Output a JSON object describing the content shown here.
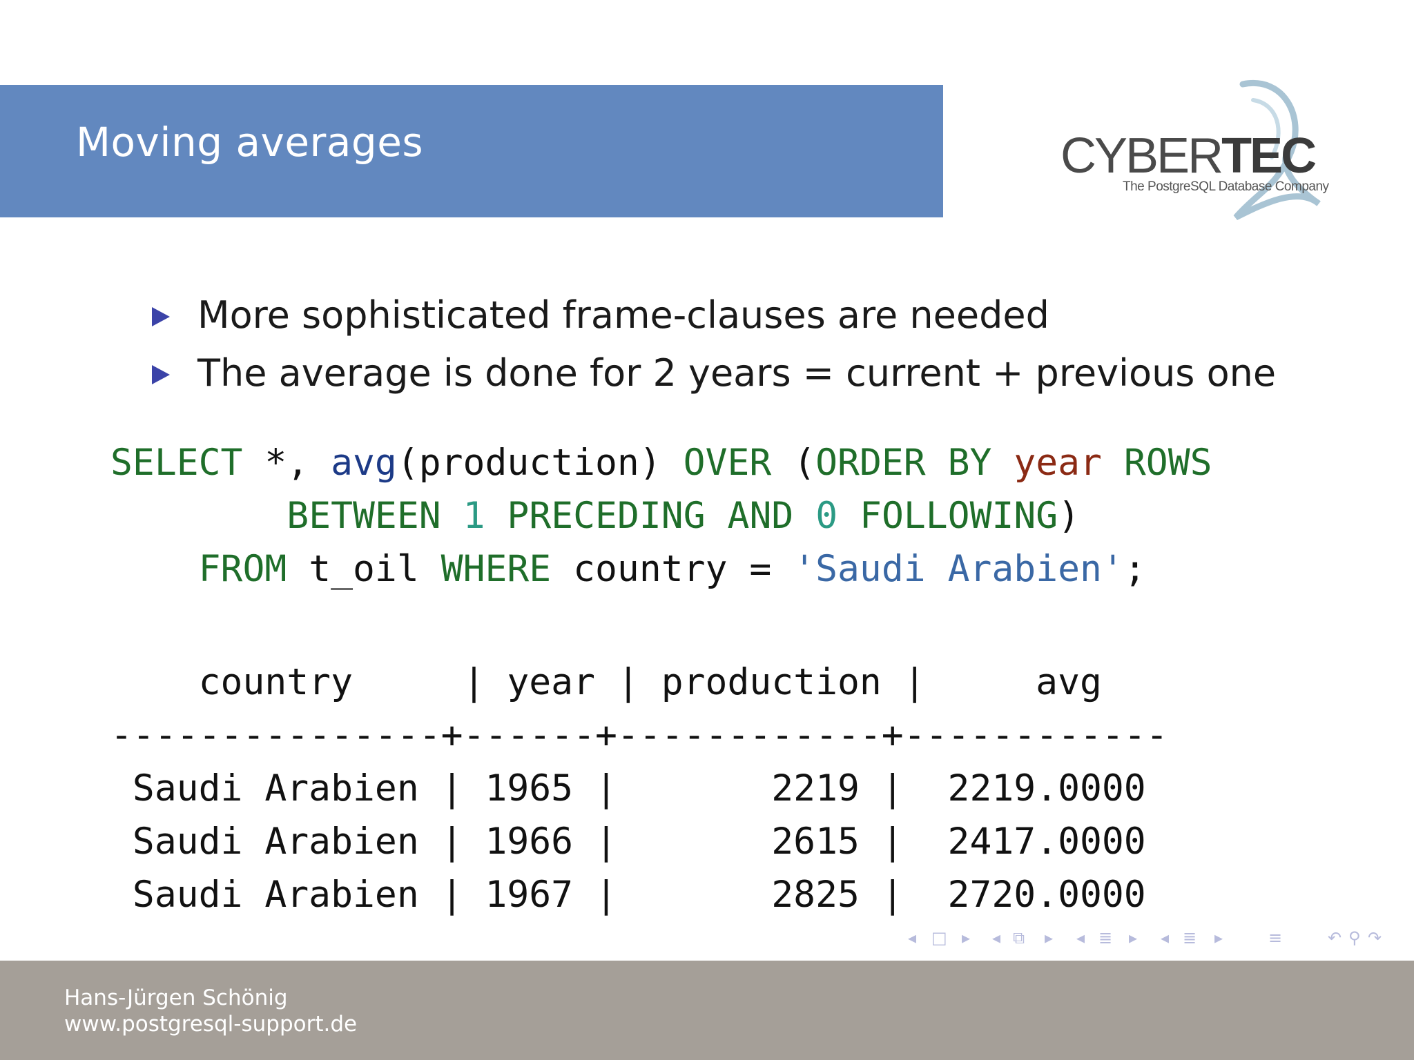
{
  "slide": {
    "title": "Moving averages",
    "logo": {
      "brand": "CYBERTEC",
      "tagline": "The PostgreSQL Database Company"
    }
  },
  "bullets": [
    "More sophisticated frame-clauses are needed",
    "The average is done for 2 years = current + previous one"
  ],
  "code": {
    "line1": {
      "select": "SELECT",
      "star": " *, ",
      "avg": "avg",
      "args": "(production) ",
      "over": "OVER",
      "paren": " (",
      "order_by": "ORDER BY",
      "sp1": " ",
      "year": "year",
      "sp2": " ",
      "rows": "ROWS"
    },
    "line2": {
      "indent": "        ",
      "between": "BETWEEN",
      "sp1": " ",
      "one": "1",
      "sp2": " ",
      "preceding": "PRECEDING",
      "sp3": " ",
      "and": "AND",
      "sp4": " ",
      "zero": "0",
      "sp5": " ",
      "following": "FOLLOWING",
      "close": ")"
    },
    "line3": {
      "indent": "    ",
      "from": "FROM",
      "table": " t_oil ",
      "where": "WHERE",
      "cond": " country = ",
      "value": "'Saudi Arabien'",
      "semi": ";"
    }
  },
  "result": {
    "header": "    country     | year | production |     avg",
    "separator": "---------------+------+------------+------------",
    "rows": [
      " Saudi Arabien | 1965 |       2219 |  2219.0000",
      " Saudi Arabien | 1966 |       2615 |  2417.0000",
      " Saudi Arabien | 1967 |       2825 |  2720.0000"
    ]
  },
  "navigation": {
    "icons": [
      "nav-left-icon",
      "frame-icon",
      "nav-right-icon",
      "nav-left-icon",
      "subsection-icon",
      "nav-right-icon",
      "nav-left-icon",
      "section-icon",
      "nav-right-icon",
      "nav-left-icon",
      "section-icon",
      "nav-right-icon",
      "outline-icon",
      "undo-icon",
      "search-icon",
      "redo-icon"
    ]
  },
  "footer": {
    "author": "Hans-Jürgen Schönig",
    "website": "www.postgresql-support.de"
  },
  "colors": {
    "title_bar": "#6288bf",
    "footer": "#a59f98",
    "keyword": "#1f6e2a",
    "function": "#1c3a87",
    "column": "#8b2a14",
    "number": "#2b9a84",
    "string": "#3a68a5",
    "bullet": "#3b43a8"
  }
}
